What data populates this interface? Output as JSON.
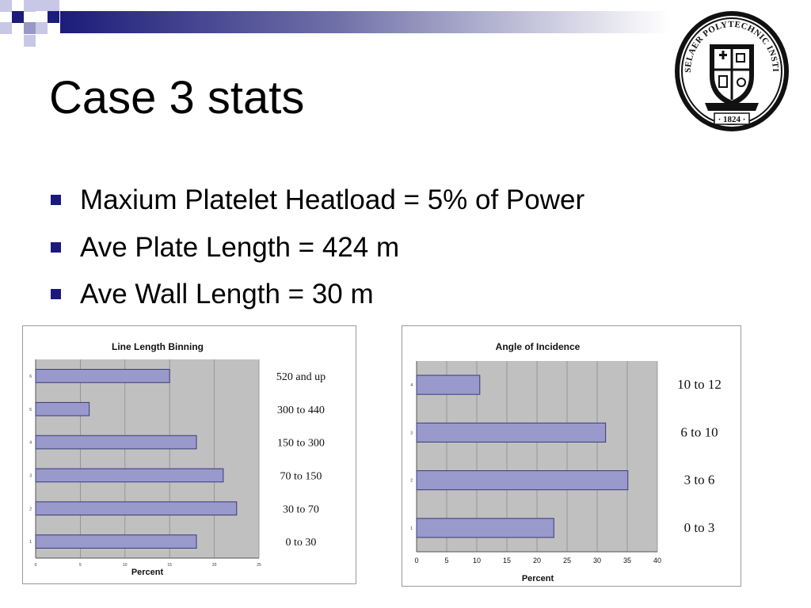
{
  "slide": {
    "title": "Case 3 stats",
    "bullets": [
      "Maxium Platelet Heatload = 5% of Power",
      "Ave Plate Length = 424 m",
      "Ave Wall Length = 30 m"
    ],
    "logo": {
      "ring_text": "RENSSELAER POLYTECHNIC INSTITUTE",
      "year": "· 1824 ·"
    },
    "colors": {
      "accent": "#1a1a7e",
      "bar_fill": "#9999cc",
      "plot_bg": "#c0c0c0"
    }
  },
  "chart_data": [
    {
      "type": "bar",
      "orientation": "horizontal",
      "title": "Line Length Binning",
      "xlabel": "Percent",
      "xlim": [
        0,
        25
      ],
      "xticks": [
        "0",
        "5",
        "10",
        "15",
        "20",
        "25"
      ],
      "ytick_labels": [
        "1",
        "2",
        "3",
        "4",
        "5",
        "6"
      ],
      "category_labels": [
        "0 to 30",
        "30 to 70",
        "70 to 150",
        "150 to 300",
        "300 to 440",
        "520 and up"
      ],
      "values": [
        18,
        22.5,
        21,
        18,
        6,
        15
      ],
      "grid": true
    },
    {
      "type": "bar",
      "orientation": "horizontal",
      "title": "Angle of Incidence",
      "xlabel": "Percent",
      "xlim": [
        0,
        40
      ],
      "xticks": [
        "0",
        "5",
        "10",
        "15",
        "20",
        "25",
        "30",
        "35",
        "40"
      ],
      "ytick_labels": [
        "1",
        "2",
        "3",
        "4"
      ],
      "category_labels": [
        "0 to 3",
        "3 to 6",
        "6 to 10",
        "10 to 12"
      ],
      "values": [
        22.8,
        35.1,
        31.4,
        10.5
      ],
      "grid": true
    }
  ]
}
